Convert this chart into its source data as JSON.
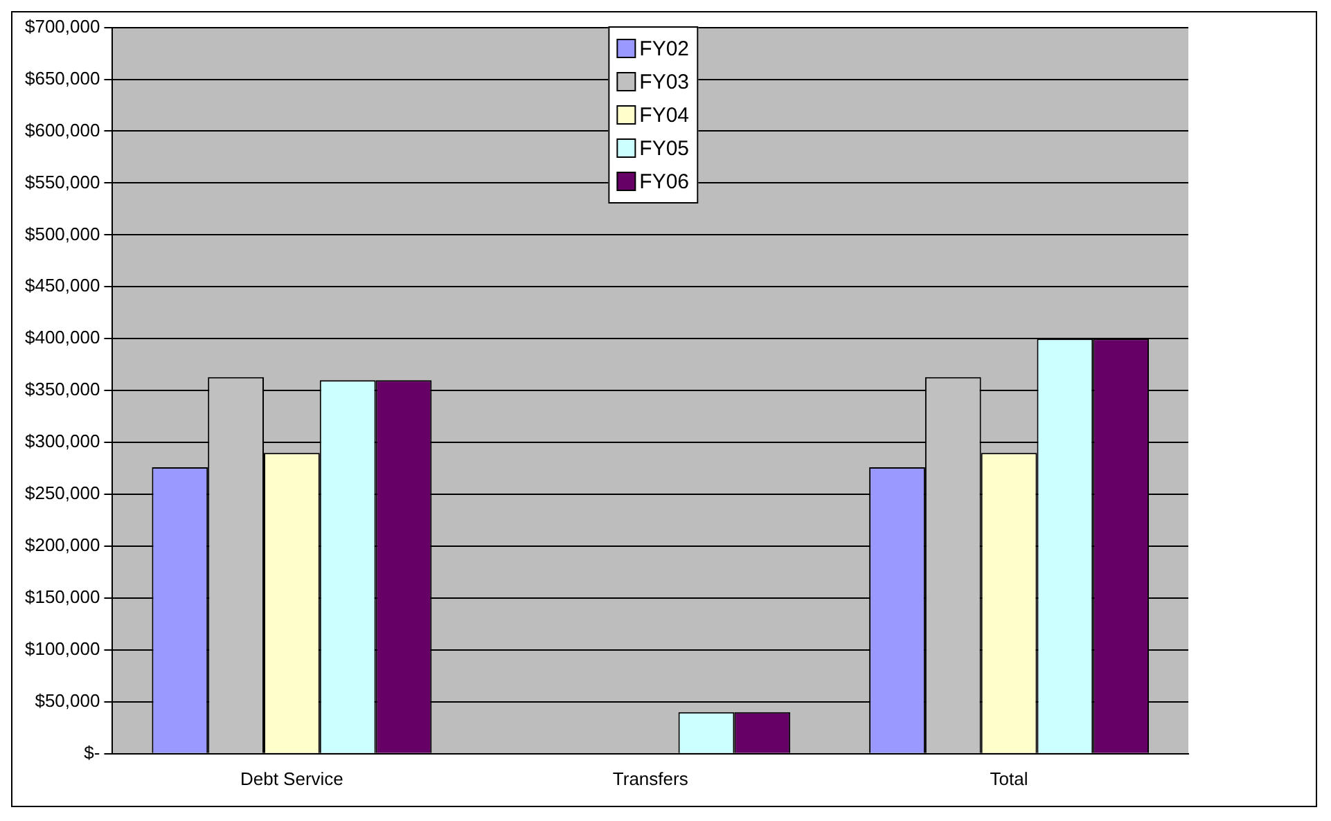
{
  "chart_data": {
    "type": "bar",
    "categories": [
      "Debt Service",
      "Transfers",
      "Total"
    ],
    "series": [
      {
        "name": "FY02",
        "color": "#9999ff",
        "values": [
          276000,
          null,
          276000
        ]
      },
      {
        "name": "FY03",
        "color": "#c0c0c0",
        "values": [
          363000,
          null,
          363000
        ]
      },
      {
        "name": "FY04",
        "color": "#ffffcc",
        "values": [
          290000,
          null,
          290000
        ]
      },
      {
        "name": "FY05",
        "color": "#ccffff",
        "values": [
          360000,
          40000,
          400000
        ]
      },
      {
        "name": "FY06",
        "color": "#660066",
        "values": [
          360000,
          40000,
          400000
        ]
      }
    ],
    "ylim": [
      0,
      700000
    ],
    "yticks": [
      {
        "value": 0,
        "label": "$-"
      },
      {
        "value": 50000,
        "label": "$50,000"
      },
      {
        "value": 100000,
        "label": "$100,000"
      },
      {
        "value": 150000,
        "label": "$150,000"
      },
      {
        "value": 200000,
        "label": "$200,000"
      },
      {
        "value": 250000,
        "label": "$250,000"
      },
      {
        "value": 300000,
        "label": "$300,000"
      },
      {
        "value": 350000,
        "label": "$350,000"
      },
      {
        "value": 400000,
        "label": "$400,000"
      },
      {
        "value": 450000,
        "label": "$450,000"
      },
      {
        "value": 500000,
        "label": "$500,000"
      },
      {
        "value": 550000,
        "label": "$550,000"
      },
      {
        "value": 600000,
        "label": "$600,000"
      },
      {
        "value": 650000,
        "label": "$650,000"
      },
      {
        "value": 700000,
        "label": "$700,000"
      }
    ],
    "grid": "y",
    "legend": "top"
  }
}
